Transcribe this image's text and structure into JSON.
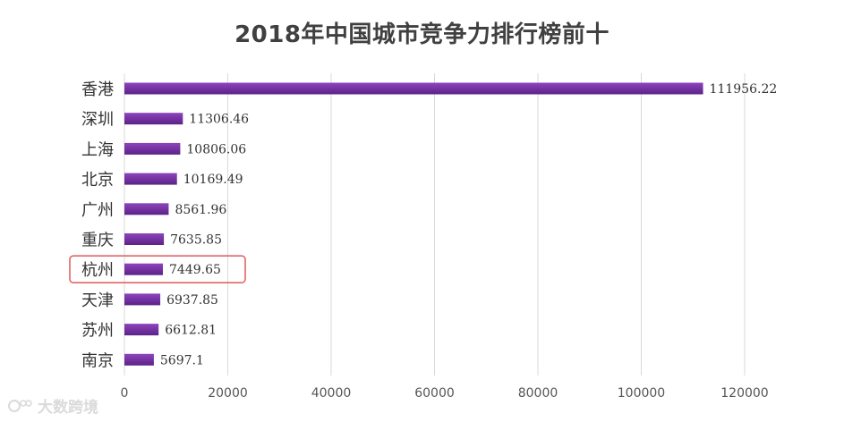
{
  "chart_data": {
    "type": "bar",
    "orientation": "horizontal",
    "title": "2018年中国城市竞争力排行榜前十",
    "categories": [
      "香港",
      "深圳",
      "上海",
      "北京",
      "广州",
      "重庆",
      "杭州",
      "天津",
      "苏州",
      "南京"
    ],
    "values": [
      111956.22,
      11306.46,
      10806.06,
      10169.49,
      8561.96,
      7635.85,
      7449.65,
      6937.85,
      6612.81,
      5697.1
    ],
    "value_labels": [
      "111956.22",
      "11306.46",
      "10806.06",
      "10169.49",
      "8561.96",
      "7635.85",
      "7449.65",
      "6937.85",
      "6612.81",
      "5697.1"
    ],
    "xlim": [
      0,
      120000
    ],
    "xticks": [
      0,
      20000,
      40000,
      60000,
      80000,
      100000,
      120000
    ],
    "xtick_labels": [
      "0",
      "20000",
      "40000",
      "60000",
      "80000",
      "100000",
      "120000"
    ],
    "grid": "vertical",
    "highlighted_category": "杭州",
    "colors": {
      "bar": "#6a2c9a",
      "bar_light": "#9b59c6",
      "highlight_box": "#e06666",
      "grid": "#d9d9d9",
      "text": "#333333",
      "tick_text": "#555555"
    }
  },
  "watermark": {
    "text": "大数跨境"
  }
}
